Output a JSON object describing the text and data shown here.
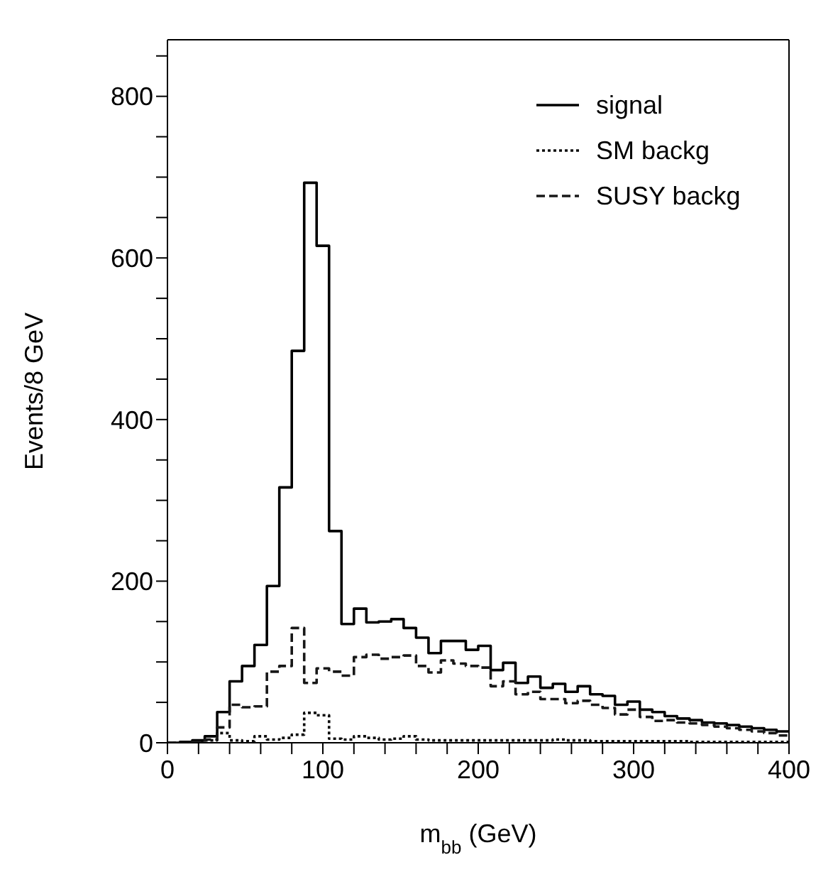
{
  "chart_data": {
    "type": "histogram",
    "xlabel": "m$_{bb}$ (GeV)",
    "ylabel": "Events/8 GeV",
    "bins": [
      0,
      8,
      16,
      24,
      32,
      40,
      48,
      56,
      64,
      72,
      80,
      88,
      96,
      104,
      112,
      120,
      128,
      136,
      144,
      152,
      160,
      168,
      176,
      184,
      192,
      200,
      208,
      216,
      224,
      232,
      240,
      248,
      256,
      264,
      272,
      280,
      288,
      296,
      304,
      312,
      320,
      328,
      336,
      344,
      352,
      360,
      368,
      376,
      384,
      392,
      400
    ],
    "series": [
      {
        "name": "signal",
        "color": "#000000",
        "line_style": "solid",
        "values": [
          0,
          1,
          3,
          8,
          38,
          76,
          95,
          121,
          194,
          316,
          485,
          693,
          615,
          262,
          147,
          166,
          149,
          150,
          153,
          142,
          130,
          111,
          126,
          126,
          115,
          120,
          90,
          99,
          74,
          82,
          68,
          73,
          63,
          70,
          60,
          58,
          47,
          51,
          41,
          38,
          33,
          30,
          28,
          25,
          24,
          22,
          20,
          18,
          16,
          14
        ]
      },
      {
        "name": "SM backg",
        "color": "#0c0c0c",
        "line_style": "dotted",
        "values": [
          0,
          0,
          1,
          3,
          12,
          3,
          2,
          8,
          4,
          6,
          10,
          37,
          34,
          5,
          4,
          8,
          6,
          4,
          5,
          8,
          4,
          3,
          3,
          3,
          3,
          3,
          3,
          3,
          3,
          3,
          3,
          4,
          3,
          3,
          2,
          2,
          2,
          2,
          2,
          2,
          2,
          2,
          1,
          1,
          1,
          1,
          1,
          1,
          1,
          1
        ]
      },
      {
        "name": "SUSY backg",
        "color": "#181818",
        "line_style": "dashed",
        "values": [
          0,
          0,
          1,
          4,
          19,
          47,
          44,
          45,
          88,
          95,
          142,
          74,
          92,
          88,
          83,
          106,
          109,
          104,
          106,
          108,
          95,
          87,
          102,
          98,
          95,
          93,
          70,
          76,
          60,
          63,
          54,
          54,
          49,
          52,
          47,
          43,
          35,
          41,
          32,
          27,
          28,
          25,
          24,
          22,
          20,
          18,
          16,
          14,
          12,
          9
        ]
      }
    ],
    "xlim": [
      0,
      400
    ],
    "xticks": [
      0,
      {
        "value": 20,
        "label": null
      },
      {
        "value": 40,
        "label": null
      },
      {
        "value": 60,
        "label": null
      },
      {
        "value": 80,
        "label": null
      },
      100,
      {
        "value": 120,
        "label": null
      },
      {
        "value": 140,
        "label": null
      },
      {
        "value": 160,
        "label": null
      },
      {
        "value": 180,
        "label": null
      },
      200,
      {
        "value": 220,
        "label": null
      },
      {
        "value": 240,
        "label": null
      },
      {
        "value": 260,
        "label": null
      },
      {
        "value": 280,
        "label": null
      },
      300,
      {
        "value": 320,
        "label": null
      },
      {
        "value": 340,
        "label": null
      },
      {
        "value": 360,
        "label": null
      },
      {
        "value": 380,
        "label": null
      },
      400
    ],
    "ylim": [
      0,
      870
    ],
    "yticks": [
      0,
      {
        "value": 50,
        "label": null
      },
      {
        "value": 100,
        "label": null
      },
      {
        "value": 150,
        "label": null
      },
      200,
      {
        "value": 250,
        "label": null
      },
      {
        "value": 300,
        "label": null
      },
      {
        "value": 350,
        "label": null
      },
      400,
      {
        "value": 450,
        "label": null
      },
      {
        "value": 500,
        "label": null
      },
      {
        "value": 550,
        "label": null
      },
      600,
      {
        "value": 650,
        "label": null
      },
      {
        "value": 700,
        "label": null
      },
      {
        "value": 750,
        "label": null
      },
      800,
      {
        "value": 850,
        "label": null
      }
    ],
    "grid": false,
    "legend": "top right"
  }
}
